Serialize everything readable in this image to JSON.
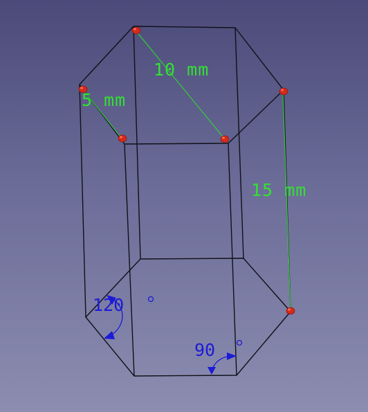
{
  "view": {
    "background_top": "#4b4a79",
    "background_bottom": "#8c8db0",
    "edge_color": "#101018"
  },
  "dimensions": {
    "color": "#33e033",
    "length_diameter": "10 mm",
    "length_side": "5 mm",
    "length_height": "15 mm"
  },
  "angles": {
    "color": "#1b1bd6",
    "angle_1": "120",
    "angle_2": "90",
    "degree_symbol": "°"
  },
  "vertices": {
    "color": "#d42a1a",
    "count": 6
  }
}
